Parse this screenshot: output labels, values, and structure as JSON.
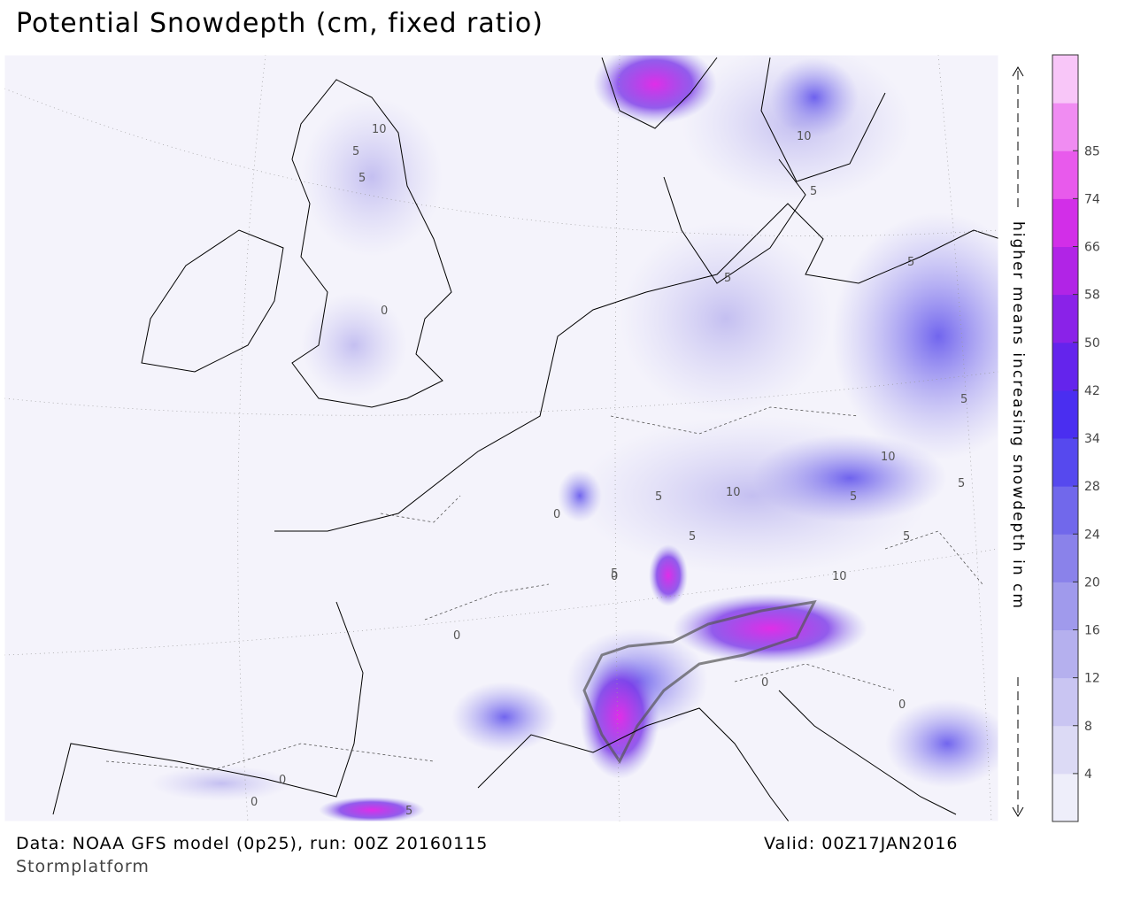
{
  "title": "Potential Snowdepth (cm, fixed ratio)",
  "footer": {
    "data": "Data: NOAA GFS model (0p25), run: 00Z 20160115",
    "valid": "Valid: 00Z17JAN2016",
    "brand": "Stormplatform"
  },
  "side_label": "higher means increasing snowdepth in cm",
  "colorbar": {
    "ticks": [
      4,
      8,
      12,
      16,
      20,
      24,
      28,
      34,
      42,
      50,
      58,
      66,
      74,
      85
    ],
    "colors": [
      "#eeeefa",
      "#dcdaf5",
      "#c9c5f2",
      "#b5b0ee",
      "#a09aec",
      "#8a82ea",
      "#7168eb",
      "#5649ee",
      "#4a2ef0",
      "#6424ec",
      "#8a22e8",
      "#b124e6",
      "#d22ee8",
      "#e85aec",
      "#f08cf2",
      "#f8c6f8"
    ]
  },
  "contour_labels": [
    "5",
    "10",
    "5",
    "0",
    "0",
    "5",
    "5",
    "10",
    "5",
    "10",
    "5",
    "5",
    "0",
    "5",
    "5",
    "0",
    "10",
    "5",
    "5",
    "0",
    "0",
    "0",
    "0",
    "5",
    "5",
    "10"
  ]
}
